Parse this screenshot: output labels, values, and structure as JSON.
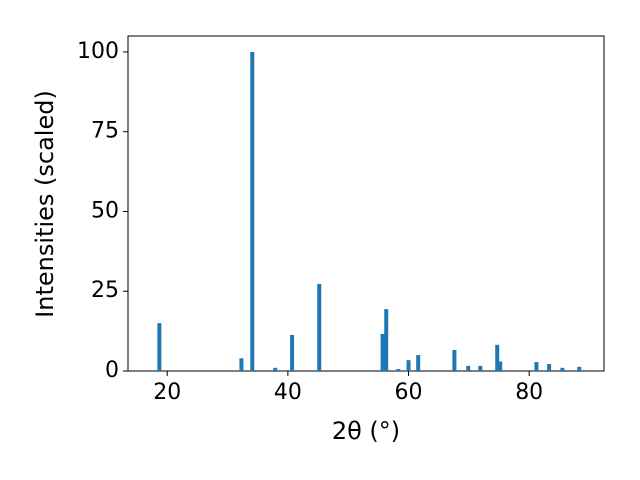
{
  "chart_data": {
    "type": "bar",
    "xlabel": "2θ (°)",
    "ylabel": "Intensities (scaled)",
    "x": [
      18.7,
      32.3,
      34.1,
      37.9,
      40.7,
      45.2,
      55.7,
      56.3,
      58.3,
      60.0,
      61.6,
      67.6,
      69.9,
      71.9,
      74.7,
      75.2,
      81.2,
      83.3,
      85.5,
      88.3
    ],
    "values": [
      15,
      4,
      100,
      1,
      11.3,
      27.3,
      11.6,
      19.4,
      0.6,
      3.4,
      5,
      6.6,
      1.6,
      1.6,
      8.2,
      3,
      2.8,
      2.2,
      1,
      1.3
    ],
    "color": "#1f77b4",
    "xlim": [
      13.5,
      92.4
    ],
    "ylim": [
      0,
      105
    ],
    "xticks": [
      20,
      40,
      60,
      80
    ],
    "yticks": [
      0,
      25,
      50,
      75,
      100
    ],
    "grid": false
  }
}
